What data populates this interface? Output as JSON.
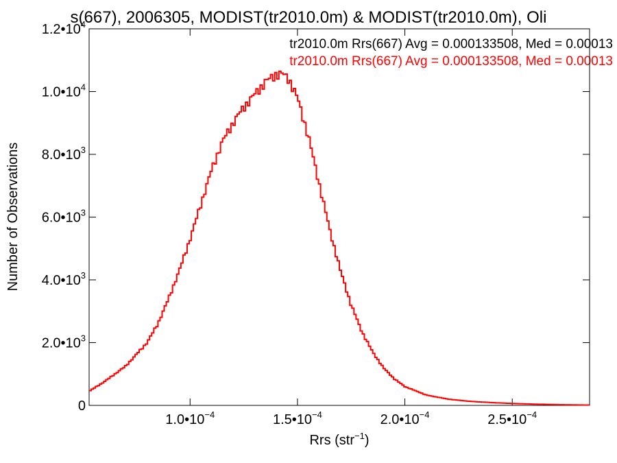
{
  "chart_data": {
    "type": "step",
    "title": "s(667), 2006305, MODIST(tr2010.0m) & MODIST(tr2010.0m), Oli",
    "xlabel": {
      "text": "Rrs (str",
      "sup": "−1",
      "close": ")"
    },
    "ylabel": "Number of Observations",
    "xlim": [
      5.3e-05,
      0.000286
    ],
    "ylim": [
      0,
      12000
    ],
    "xticks": [
      {
        "value": 0.0001,
        "mant": "1.0",
        "exp": "−4"
      },
      {
        "value": 0.00015,
        "mant": "1.5",
        "exp": "−4"
      },
      {
        "value": 0.0002,
        "mant": "2.0",
        "exp": "−4"
      },
      {
        "value": 0.00025,
        "mant": "2.5",
        "exp": "−4"
      }
    ],
    "yticks": [
      {
        "value": 0,
        "mant": "0",
        "exp": ""
      },
      {
        "value": 2000,
        "mant": "2.0",
        "exp": "3"
      },
      {
        "value": 4000,
        "mant": "4.0",
        "exp": "3"
      },
      {
        "value": 6000,
        "mant": "6.0",
        "exp": "3"
      },
      {
        "value": 8000,
        "mant": "8.0",
        "exp": "3"
      },
      {
        "value": 10000,
        "mant": "1.0",
        "exp": "4"
      },
      {
        "value": 12000,
        "mant": "1.2",
        "exp": "4"
      }
    ],
    "legend": [
      {
        "text": "tr2010.0m Rrs(667) Avg = 0.000133508, Med = 0.00013",
        "color": "#000000"
      },
      {
        "text": "tr2010.0m Rrs(667) Avg = 0.000133508, Med = 0.00013",
        "color": "#ff0000"
      }
    ],
    "legend_position": "top-right",
    "series": [
      {
        "color": "#ff0000",
        "x": [
          5.3e-05,
          6e-05,
          7e-05,
          8e-05,
          8.5e-05,
          9e-05,
          9.5e-05,
          0.0001,
          0.000105,
          0.00011,
          0.000115,
          0.00012,
          0.000125,
          0.00013,
          0.000135,
          0.00014,
          0.000143,
          0.000146,
          0.00015,
          0.000155,
          0.00016,
          0.000165,
          0.00017,
          0.000175,
          0.00018,
          0.000185,
          0.00019,
          0.000195,
          0.0002,
          0.00021,
          0.00022,
          0.00023,
          0.00024,
          0.00025,
          0.00026,
          0.00027,
          0.00028,
          0.000286
        ],
        "y": [
          450,
          750,
          1250,
          2000,
          2600,
          3400,
          4300,
          5300,
          6400,
          7500,
          8400,
          9000,
          9500,
          9900,
          10300,
          10550,
          10560,
          10400,
          9800,
          8600,
          7100,
          5600,
          4300,
          3200,
          2350,
          1700,
          1200,
          850,
          600,
          330,
          200,
          130,
          90,
          60,
          40,
          25,
          15,
          10
        ]
      }
    ]
  }
}
